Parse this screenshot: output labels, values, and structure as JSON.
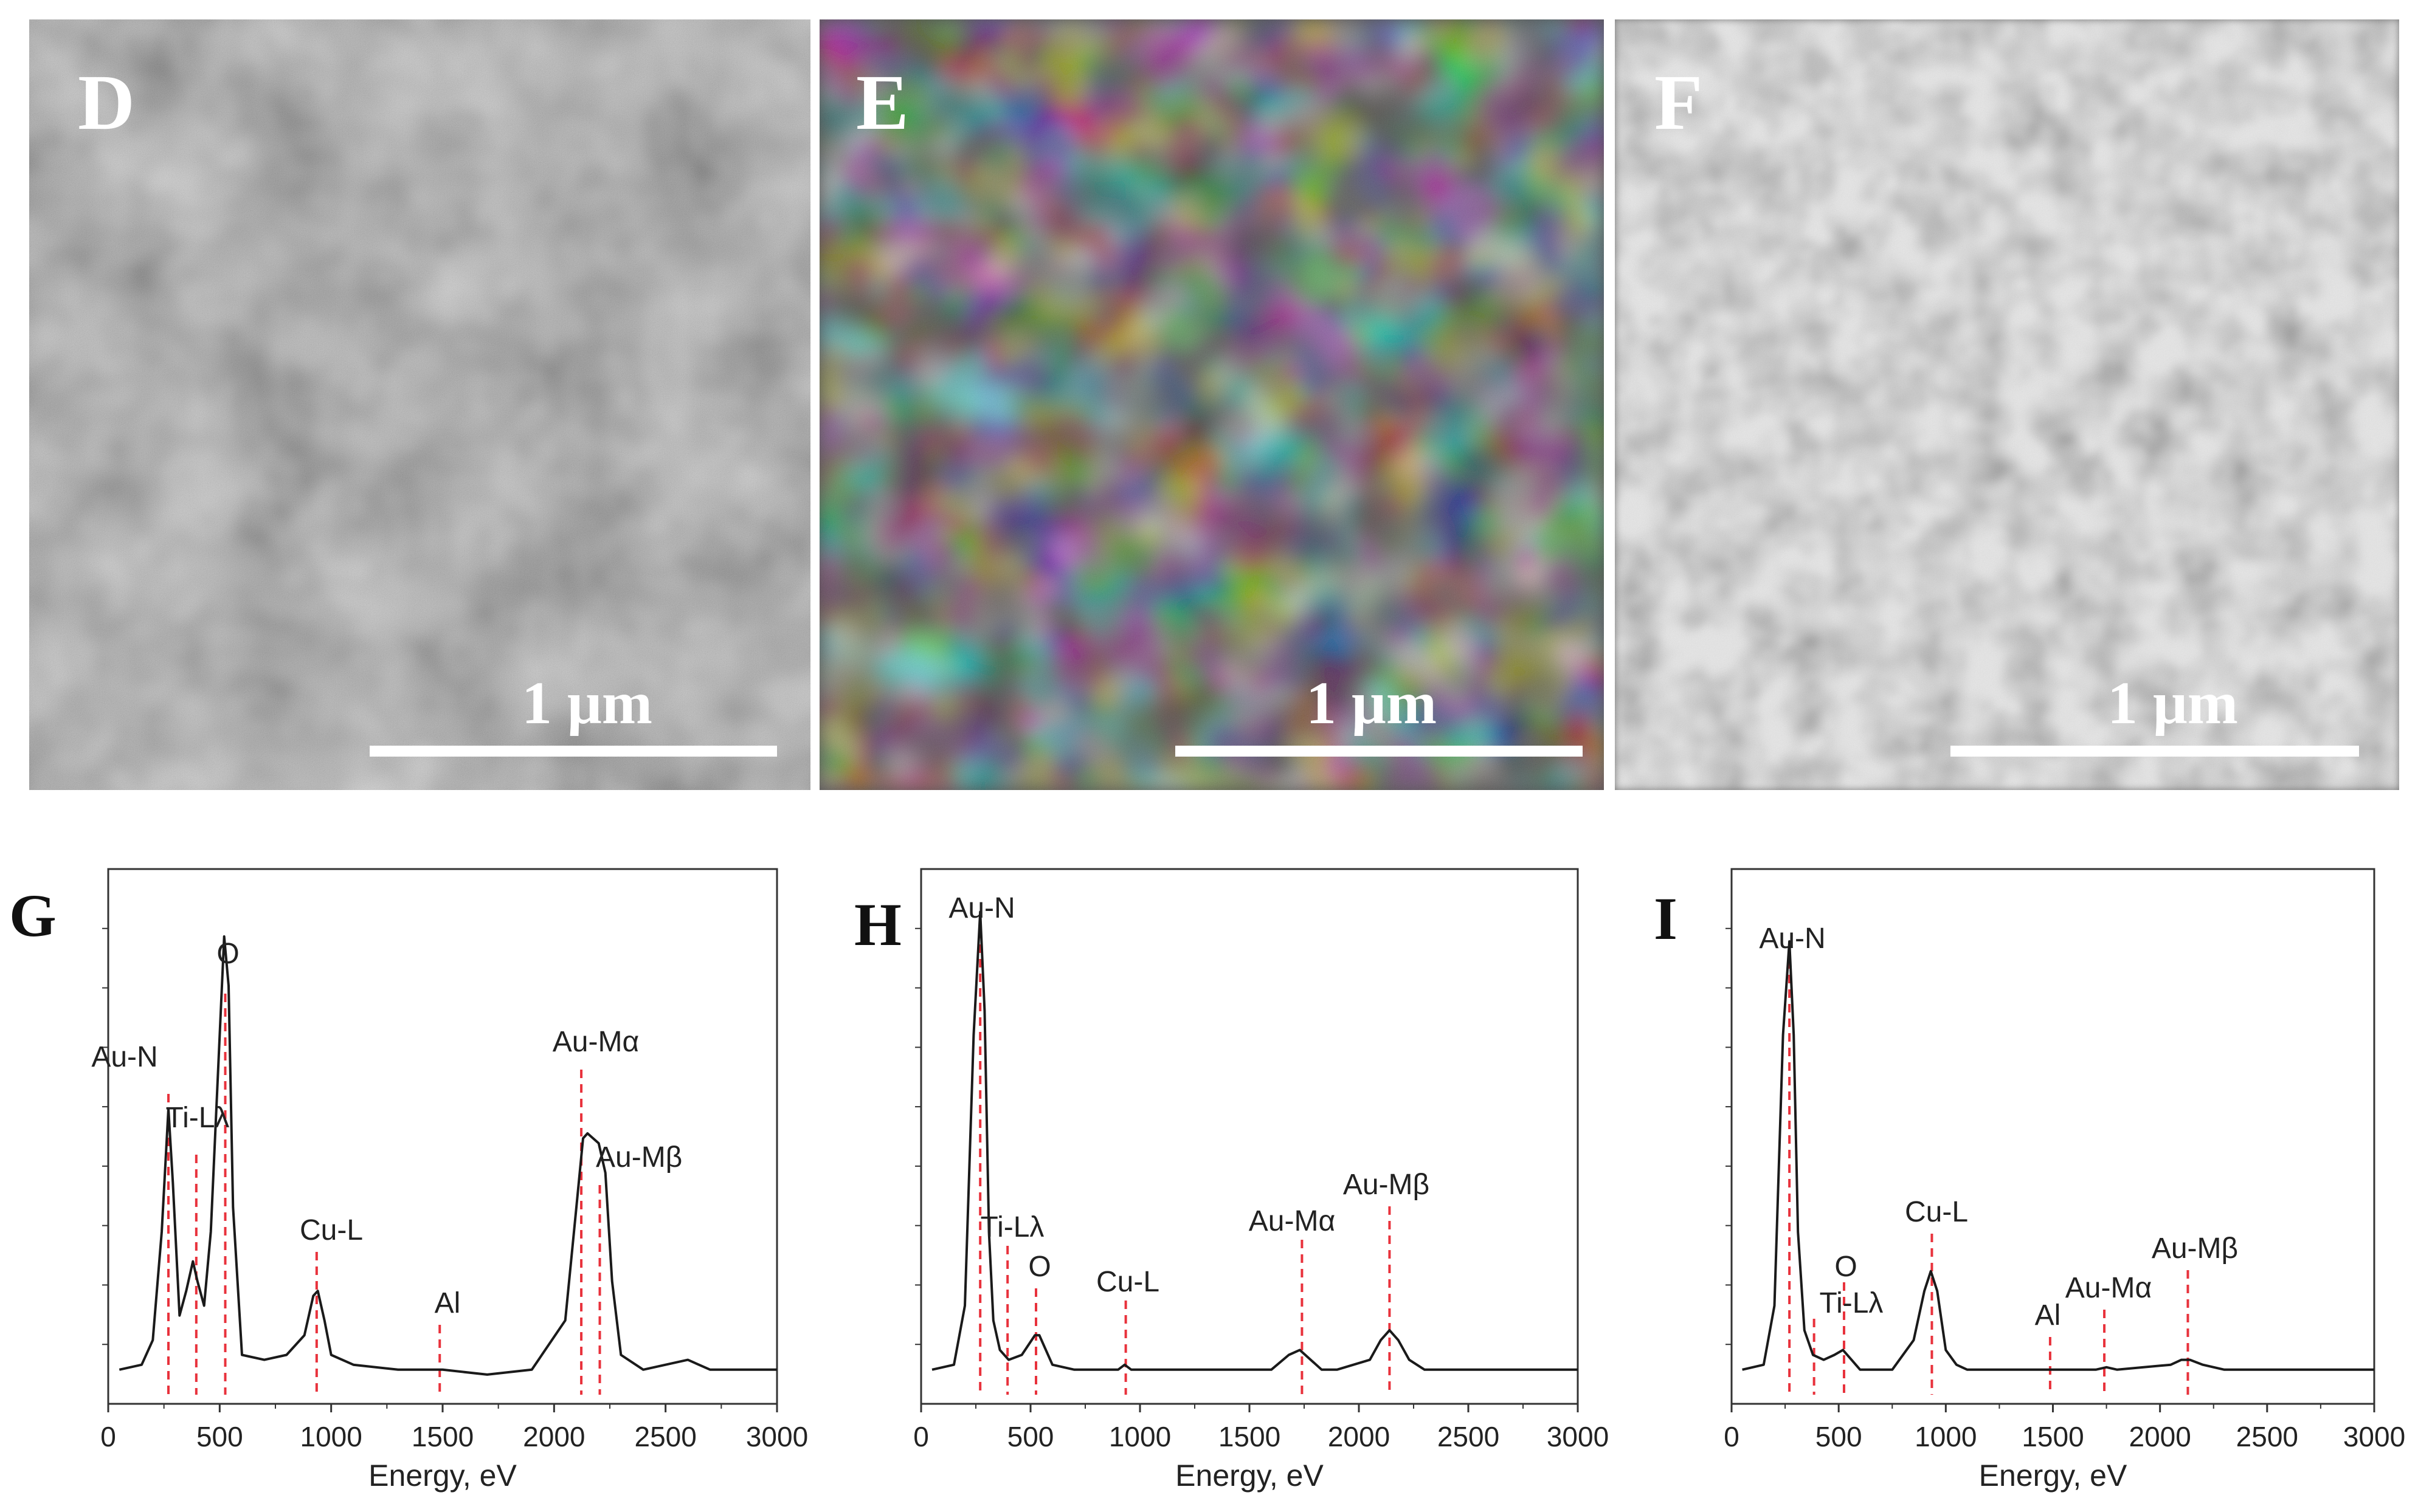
{
  "micrographs": [
    {
      "label": "D",
      "scale": "1 μm"
    },
    {
      "label": "E",
      "scale": "1 μm"
    },
    {
      "label": "F",
      "scale": "1 μm"
    }
  ],
  "colors": {
    "peak_marker": "#e8323c",
    "spectrum": "#1a1a1a"
  },
  "chart_data": [
    {
      "type": "line",
      "panel": "G",
      "xlabel": "Energy, eV",
      "xlim": [
        0,
        3000
      ],
      "xticks": [
        "0",
        "500",
        "1000",
        "1500",
        "2000",
        "2500",
        "3000"
      ],
      "ylim": [
        0,
        1
      ],
      "baseline": 0.02,
      "x": [
        50,
        150,
        200,
        240,
        270,
        290,
        320,
        350,
        380,
        400,
        430,
        460,
        490,
        520,
        540,
        560,
        600,
        700,
        800,
        880,
        920,
        940,
        970,
        1000,
        1100,
        1300,
        1500,
        1700,
        1900,
        2050,
        2100,
        2130,
        2150,
        2200,
        2230,
        2260,
        2300,
        2400,
        2600,
        2700,
        3000
      ],
      "y": [
        0.02,
        0.03,
        0.08,
        0.3,
        0.55,
        0.4,
        0.13,
        0.18,
        0.24,
        0.2,
        0.15,
        0.3,
        0.6,
        0.9,
        0.8,
        0.35,
        0.05,
        0.04,
        0.05,
        0.09,
        0.17,
        0.18,
        0.12,
        0.05,
        0.03,
        0.02,
        0.02,
        0.01,
        0.02,
        0.12,
        0.35,
        0.49,
        0.5,
        0.48,
        0.42,
        0.2,
        0.05,
        0.02,
        0.04,
        0.02,
        0.02
      ],
      "peaks": [
        {
          "name": "Au-N",
          "x": 270
        },
        {
          "name": "Ti-Lλ",
          "x": 395
        },
        {
          "name": "O",
          "x": 525
        },
        {
          "name": "Cu-L",
          "x": 935
        },
        {
          "name": "Al",
          "x": 1487
        },
        {
          "name": "Au-Mα",
          "x": 2122
        },
        {
          "name": "Au-Mβ",
          "x": 2205
        }
      ]
    },
    {
      "type": "line",
      "panel": "H",
      "xlabel": "Energy, eV",
      "xlim": [
        0,
        3000
      ],
      "xticks": [
        "0",
        "500",
        "1000",
        "1500",
        "2000",
        "2500",
        "3000"
      ],
      "ylim": [
        0,
        1
      ],
      "baseline": 0.02,
      "x": [
        50,
        150,
        200,
        240,
        270,
        290,
        310,
        330,
        360,
        400,
        460,
        520,
        540,
        570,
        600,
        700,
        900,
        930,
        960,
        1000,
        1200,
        1600,
        1680,
        1730,
        1780,
        1830,
        1900,
        2050,
        2100,
        2140,
        2180,
        2230,
        2300,
        2500,
        3000
      ],
      "y": [
        0.02,
        0.03,
        0.15,
        0.7,
        0.95,
        0.75,
        0.3,
        0.12,
        0.06,
        0.04,
        0.05,
        0.09,
        0.09,
        0.06,
        0.03,
        0.02,
        0.02,
        0.03,
        0.02,
        0.02,
        0.02,
        0.02,
        0.05,
        0.06,
        0.04,
        0.02,
        0.02,
        0.04,
        0.08,
        0.1,
        0.08,
        0.04,
        0.02,
        0.02,
        0.02
      ],
      "peaks": [
        {
          "name": "Au-N",
          "x": 270
        },
        {
          "name": "Ti-Lλ",
          "x": 395
        },
        {
          "name": "O",
          "x": 525
        },
        {
          "name": "Cu-L",
          "x": 935
        },
        {
          "name": "Au-Mα",
          "x": 1740
        },
        {
          "name": "Au-Mβ",
          "x": 2140
        }
      ]
    },
    {
      "type": "line",
      "panel": "I",
      "xlabel": "Energy, eV",
      "xlim": [
        0,
        3000
      ],
      "xticks": [
        "0",
        "500",
        "1000",
        "1500",
        "2000",
        "2500",
        "3000"
      ],
      "ylim": [
        0,
        1
      ],
      "baseline": 0.02,
      "x": [
        50,
        150,
        200,
        240,
        270,
        290,
        310,
        340,
        380,
        430,
        480,
        520,
        560,
        600,
        750,
        850,
        900,
        930,
        960,
        1000,
        1050,
        1100,
        1300,
        1500,
        1700,
        1750,
        1800,
        2050,
        2100,
        2140,
        2200,
        2300,
        2500,
        3000
      ],
      "y": [
        0.02,
        0.03,
        0.15,
        0.7,
        0.89,
        0.7,
        0.3,
        0.1,
        0.05,
        0.04,
        0.05,
        0.06,
        0.04,
        0.02,
        0.02,
        0.08,
        0.18,
        0.22,
        0.18,
        0.06,
        0.03,
        0.02,
        0.02,
        0.02,
        0.02,
        0.025,
        0.02,
        0.03,
        0.04,
        0.04,
        0.03,
        0.02,
        0.02,
        0.02
      ],
      "peaks": [
        {
          "name": "Au-N",
          "x": 270
        },
        {
          "name": "Ti-Lλ",
          "x": 385
        },
        {
          "name": "O",
          "x": 525
        },
        {
          "name": "Cu-L",
          "x": 935
        },
        {
          "name": "Al",
          "x": 1487
        },
        {
          "name": "Au-Mα",
          "x": 1740
        },
        {
          "name": "Au-Mβ",
          "x": 2130
        }
      ]
    }
  ]
}
